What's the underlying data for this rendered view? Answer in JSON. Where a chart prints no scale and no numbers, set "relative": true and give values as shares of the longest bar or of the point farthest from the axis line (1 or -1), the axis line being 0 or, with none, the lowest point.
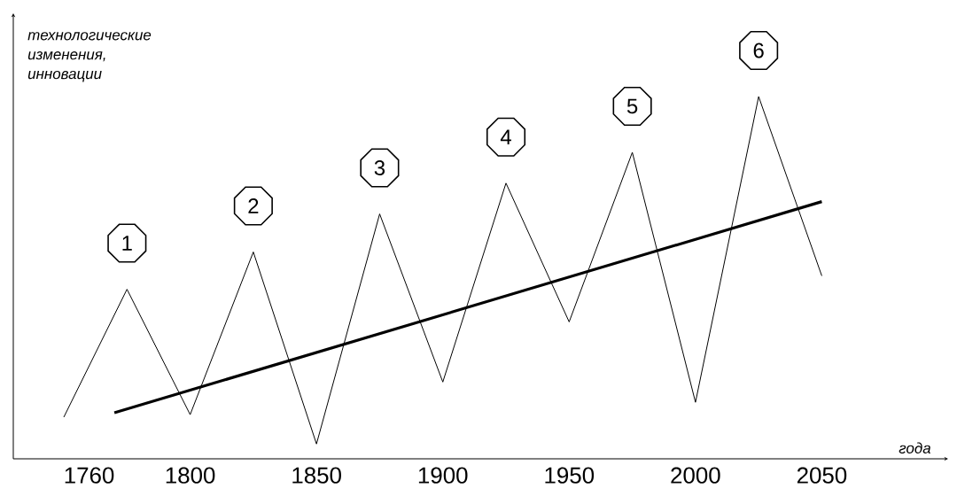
{
  "chart_data": {
    "type": "line",
    "relative": true,
    "xlabel": "года",
    "ylabel": "технологические изменения, инновации",
    "x": [
      1750,
      1775,
      1800,
      1825,
      1850,
      1875,
      1900,
      1925,
      1950,
      1975,
      2000,
      2025,
      2050
    ],
    "xlim": [
      1730,
      2100
    ],
    "xticks": [
      1760,
      1800,
      1850,
      1900,
      1950,
      2000,
      2050
    ],
    "series": [
      {
        "color": "#000000",
        "values": [
          0.115,
          0.468,
          0.122,
          0.571,
          0.041,
          0.676,
          0.212,
          0.761,
          0.378,
          0.846,
          0.156,
          1,
          0.505
        ]
      },
      {
        "color": "#000000",
        "x": [
          1770,
          2050
        ],
        "values": [
          0.127,
          0.71
        ]
      }
    ],
    "annotations": [
      {
        "text": "1",
        "x": 1775,
        "y": 0.468
      },
      {
        "text": "2",
        "x": 1825,
        "y": 0.571
      },
      {
        "text": "3",
        "x": 1875,
        "y": 0.676
      },
      {
        "text": "4",
        "x": 1925,
        "y": 0.761
      },
      {
        "text": "5",
        "x": 1975,
        "y": 0.846
      },
      {
        "text": "6",
        "x": 2025,
        "y": 1
      }
    ],
    "marker": "none",
    "line_style": "solid"
  }
}
